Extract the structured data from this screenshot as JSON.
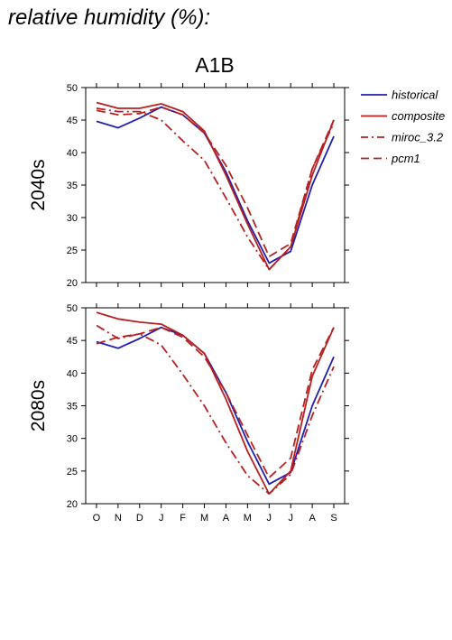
{
  "heading": "relative humidity (%):",
  "scenario": "A1B",
  "colors": {
    "historical": "#2020b0",
    "composite": "#b82020",
    "miroc_3.2": "#b82020",
    "pcm1": "#b82020"
  },
  "chart_data": [
    {
      "type": "line",
      "row_label": "2040s",
      "title": "A1B",
      "categories": [
        "O",
        "N",
        "D",
        "J",
        "F",
        "M",
        "A",
        "M",
        "J",
        "J",
        "A",
        "S"
      ],
      "ylim": [
        20,
        50
      ],
      "yticks": [
        20,
        25,
        30,
        35,
        40,
        45,
        50
      ],
      "grid": false,
      "legend": "right",
      "series": [
        {
          "name": "historical",
          "style": "solid",
          "values": [
            44.8,
            43.8,
            45.3,
            47.0,
            45.8,
            43.0,
            37.0,
            29.5,
            23.0,
            24.8,
            35.0,
            42.5
          ]
        },
        {
          "name": "composite",
          "style": "solid",
          "values": [
            47.7,
            46.8,
            46.8,
            47.5,
            46.3,
            43.3,
            36.5,
            29.0,
            22.0,
            25.5,
            36.5,
            45.0
          ]
        },
        {
          "name": "miroc_3.2",
          "style": "dashdot",
          "values": [
            46.8,
            46.3,
            46.3,
            45.0,
            41.8,
            38.8,
            33.0,
            27.0,
            22.0,
            25.5,
            37.5,
            44.5
          ]
        },
        {
          "name": "pcm1",
          "style": "dash",
          "values": [
            46.5,
            45.8,
            46.0,
            47.0,
            45.8,
            43.0,
            38.0,
            31.5,
            24.0,
            26.0,
            37.5,
            45.0
          ]
        }
      ]
    },
    {
      "type": "line",
      "row_label": "2080s",
      "categories": [
        "O",
        "N",
        "D",
        "J",
        "F",
        "M",
        "A",
        "M",
        "J",
        "J",
        "A",
        "S"
      ],
      "ylim": [
        20,
        50
      ],
      "yticks": [
        20,
        25,
        30,
        35,
        40,
        45,
        50
      ],
      "grid": false,
      "series": [
        {
          "name": "historical",
          "style": "solid",
          "values": [
            44.8,
            43.8,
            45.3,
            47.0,
            45.8,
            43.0,
            37.0,
            29.5,
            23.0,
            24.8,
            35.0,
            42.5
          ]
        },
        {
          "name": "composite",
          "style": "solid",
          "values": [
            49.3,
            48.3,
            47.8,
            47.5,
            45.8,
            43.0,
            36.0,
            28.0,
            21.5,
            25.0,
            39.5,
            47.0
          ]
        },
        {
          "name": "miroc_3.2",
          "style": "dashdot",
          "values": [
            47.3,
            45.3,
            46.0,
            44.3,
            39.8,
            35.0,
            29.3,
            24.3,
            21.5,
            24.5,
            33.5,
            41.0
          ]
        },
        {
          "name": "pcm1",
          "style": "dash",
          "values": [
            44.5,
            45.5,
            46.0,
            47.0,
            45.5,
            42.5,
            37.0,
            30.5,
            24.0,
            27.0,
            40.5,
            47.0
          ]
        }
      ]
    }
  ]
}
